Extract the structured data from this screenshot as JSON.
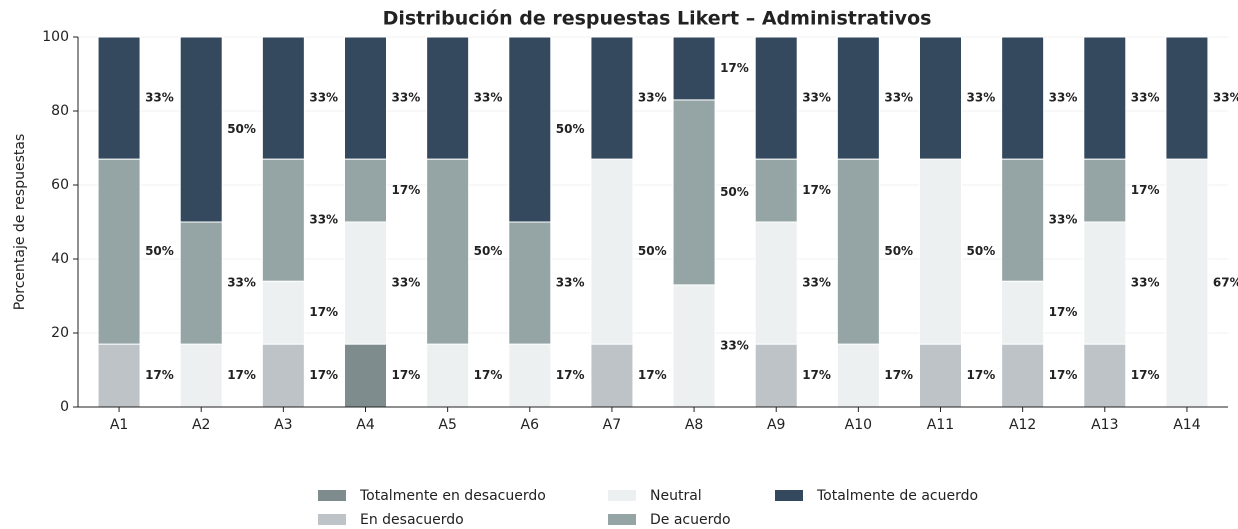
{
  "chart_data": {
    "type": "stacked_bar",
    "title": "Distribución de respuestas Likert – Administrativos",
    "ylabel": "Porcentaje de respuestas",
    "categories": [
      "A1",
      "A2",
      "A3",
      "A4",
      "A5",
      "A6",
      "A7",
      "A8",
      "A9",
      "A10",
      "A11",
      "A12",
      "A13",
      "A14"
    ],
    "ylim": [
      0,
      100
    ],
    "yticks": [
      0,
      20,
      40,
      60,
      80,
      100
    ],
    "grid": true,
    "legend": "bottom",
    "series": [
      {
        "name": "Totalmente en desacuerdo",
        "color": "#7f8c8d",
        "values": [
          0,
          0,
          0,
          17,
          0,
          0,
          0,
          0,
          0,
          0,
          0,
          0,
          0,
          0
        ],
        "value_labels": [
          null,
          null,
          null,
          "17%",
          null,
          null,
          null,
          null,
          null,
          null,
          null,
          null,
          null,
          null
        ]
      },
      {
        "name": "En desacuerdo",
        "color": "#bdc3c7",
        "values": [
          17,
          0,
          17,
          0,
          0,
          0,
          17,
          0,
          17,
          0,
          17,
          17,
          17,
          0
        ],
        "value_labels": [
          "17%",
          null,
          "17%",
          null,
          null,
          null,
          "17%",
          null,
          "17%",
          null,
          "17%",
          "17%",
          "17%",
          null
        ]
      },
      {
        "name": "Neutral",
        "color": "#ecf0f1",
        "values": [
          0,
          17,
          17,
          33,
          17,
          17,
          50,
          33,
          33,
          17,
          50,
          17,
          33,
          67
        ],
        "value_labels": [
          null,
          "17%",
          "17%",
          "33%",
          "17%",
          "17%",
          "50%",
          "33%",
          "33%",
          "17%",
          "50%",
          "17%",
          "33%",
          "67%"
        ]
      },
      {
        "name": "De acuerdo",
        "color": "#95a5a6",
        "values": [
          50,
          33,
          33,
          17,
          50,
          33,
          0,
          50,
          17,
          50,
          0,
          33,
          17,
          0
        ],
        "value_labels": [
          "50%",
          "33%",
          "33%",
          "17%",
          "50%",
          "33%",
          null,
          "50%",
          "17%",
          "50%",
          null,
          "33%",
          "17%",
          null
        ]
      },
      {
        "name": "Totalmente de acuerdo",
        "color": "#34495e",
        "values": [
          33,
          50,
          33,
          33,
          33,
          50,
          33,
          17,
          33,
          33,
          33,
          33,
          33,
          33
        ],
        "value_labels": [
          "33%",
          "50%",
          "33%",
          "33%",
          "33%",
          "50%",
          "33%",
          "17%",
          "33%",
          "33%",
          "33%",
          "33%",
          "33%",
          "33%"
        ]
      }
    ]
  }
}
